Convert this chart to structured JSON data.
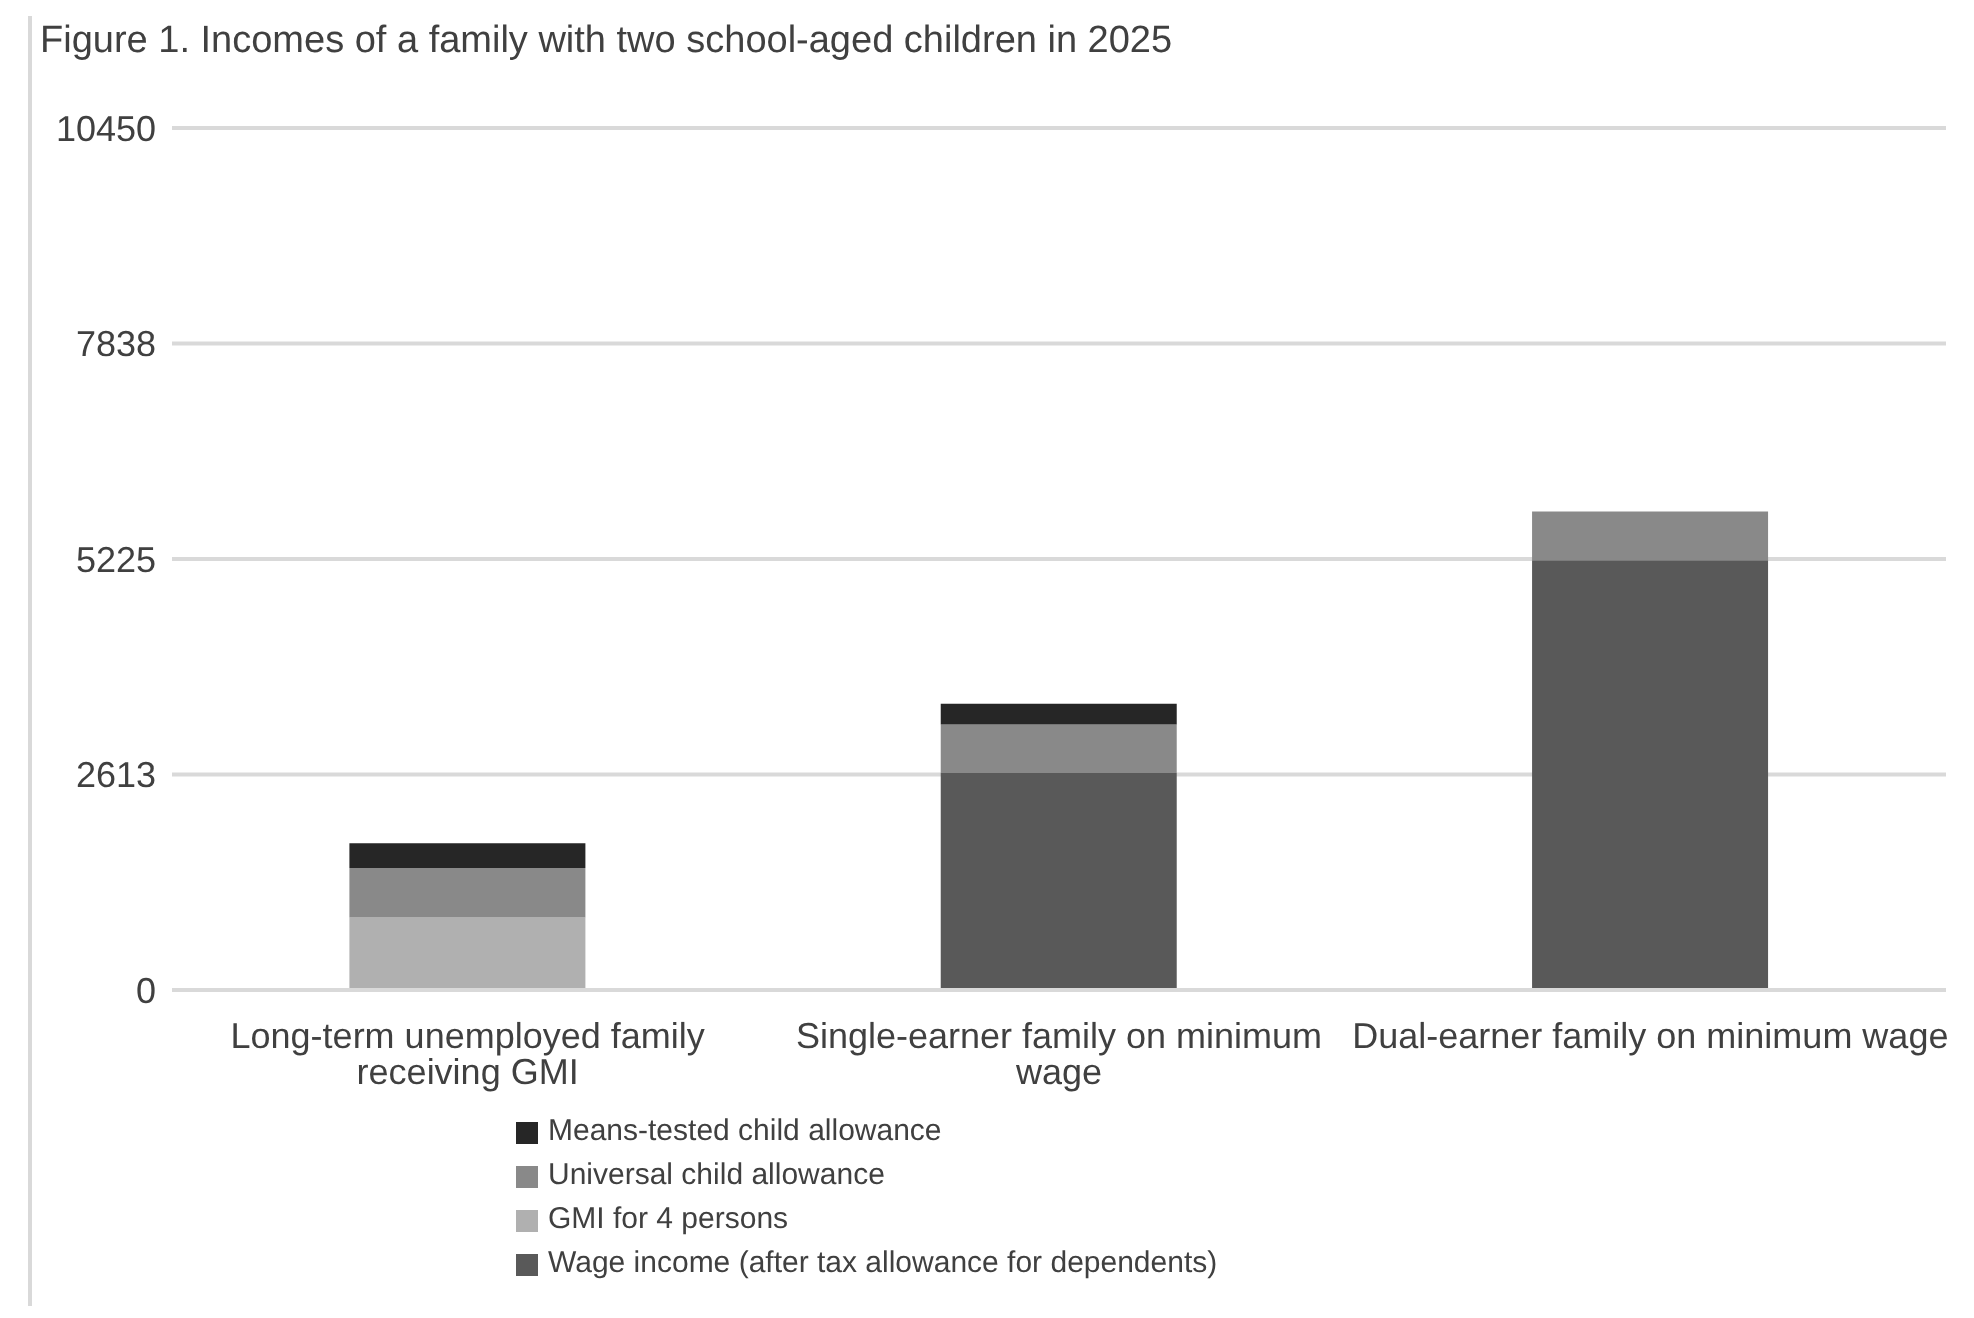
{
  "chart_data": {
    "type": "bar",
    "title": "Figure 1. Incomes of a family with two school-aged children in 2025",
    "categories": [
      "Long-term unemployed family receiving GMI",
      "Single-earner family on minimum wage",
      "Dual-earner family on minimum wage"
    ],
    "stacked": true,
    "series": [
      {
        "name": "Wage income (after tax allowance for dependents)",
        "color": "#595959",
        "values": [
          null,
          2630,
          5210
        ]
      },
      {
        "name": "GMI for 4 persons",
        "color": "#b0b0b0",
        "values": [
          880,
          null,
          null
        ]
      },
      {
        "name": "Universal child allowance",
        "color": "#898989",
        "values": [
          600,
          590,
          590
        ]
      },
      {
        "name": "Means-tested child allowance",
        "color": "#262626",
        "values": [
          300,
          250,
          null
        ]
      }
    ],
    "ylim": [
      0,
      10450
    ],
    "yticks": [
      0,
      2613,
      5225,
      7838,
      10450
    ],
    "grid": "y",
    "legend": "bottom"
  }
}
